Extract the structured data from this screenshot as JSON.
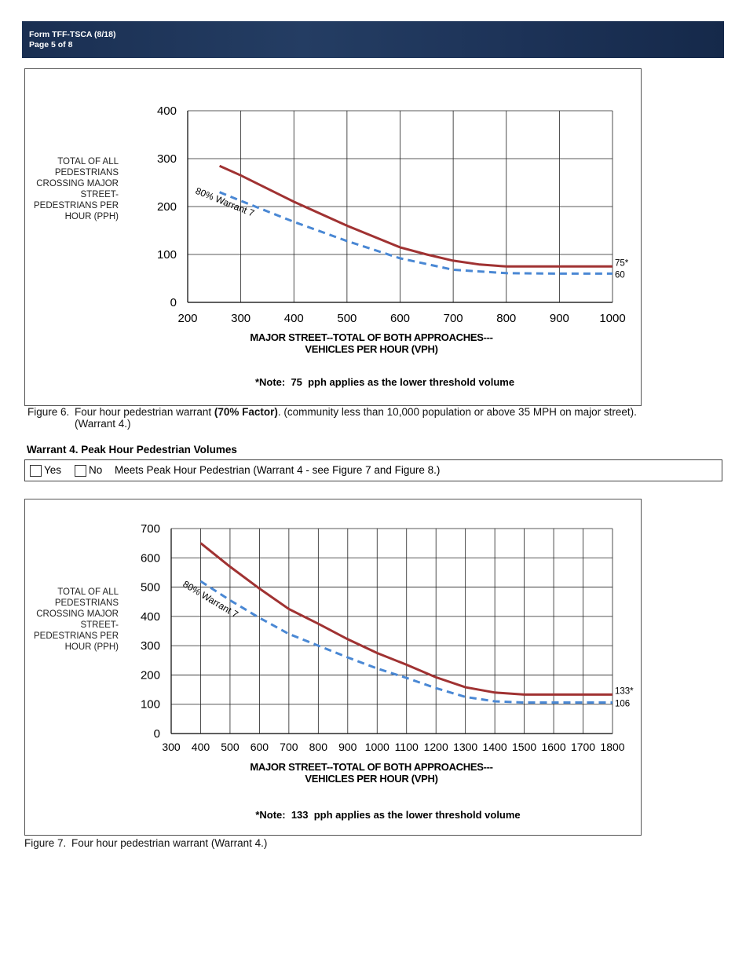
{
  "header": {
    "form": "Form TFF-TSCA  (8/18)",
    "page": "Page 5 of 8"
  },
  "chart_data": [
    {
      "type": "line",
      "ylabel": "TOTAL OF ALL PEDESTRIANS CROSSING MAJOR STREET-PEDESTRIANS PER HOUR (PPH)",
      "xlabel": [
        "MAJOR STREET--TOTAL OF BOTH APPROACHES---",
        "VEHICLES PER HOUR (VPH)"
      ],
      "note": "*Note:  75  pph applies as the lower threshold volume",
      "xlim": [
        200,
        1000
      ],
      "xticks": [
        200,
        300,
        400,
        500,
        600,
        700,
        800,
        900,
        1000
      ],
      "ylim": [
        0,
        400
      ],
      "yticks": [
        0,
        100,
        200,
        300,
        400
      ],
      "grid": true,
      "series": [
        {
          "color": "#a03232",
          "style": "solid",
          "end_label": "75*",
          "x": [
            260,
            300,
            400,
            500,
            600,
            650,
            700,
            750,
            800,
            900,
            1000
          ],
          "values": [
            285,
            265,
            210,
            160,
            115,
            100,
            87,
            79,
            75,
            75,
            75
          ]
        },
        {
          "name": "80% Warrant 7",
          "color": "#4a88d4",
          "style": "dashed",
          "end_label": "60",
          "x": [
            260,
            300,
            400,
            500,
            600,
            700,
            800,
            900,
            1000
          ],
          "values": [
            230,
            212,
            168,
            128,
            92,
            68,
            61,
            60,
            60
          ]
        }
      ]
    },
    {
      "type": "line",
      "ylabel": "TOTAL OF ALL PEDESTRIANS CROSSING MAJOR STREET-PEDESTRIANS PER HOUR (PPH)",
      "xlabel": [
        "MAJOR STREET--TOTAL OF BOTH APPROACHES---",
        "VEHICLES PER HOUR (VPH)"
      ],
      "note": "*Note:  133  pph applies as the lower threshold volume",
      "xlim": [
        300,
        1800
      ],
      "xticks": [
        300,
        400,
        500,
        600,
        700,
        800,
        900,
        1000,
        1100,
        1200,
        1300,
        1400,
        1500,
        1600,
        1700,
        1800
      ],
      "ylim": [
        0,
        700
      ],
      "yticks": [
        0,
        100,
        200,
        300,
        400,
        500,
        600,
        700
      ],
      "grid": true,
      "series": [
        {
          "color": "#a03232",
          "style": "solid",
          "end_label": "133*",
          "x": [
            400,
            500,
            600,
            700,
            800,
            900,
            1000,
            1100,
            1200,
            1300,
            1400,
            1500,
            1600,
            1700,
            1800
          ],
          "values": [
            650,
            570,
            495,
            425,
            375,
            322,
            275,
            235,
            192,
            158,
            140,
            133,
            133,
            133,
            133
          ]
        },
        {
          "name": "80% Warrant 7",
          "color": "#4a88d4",
          "style": "dashed",
          "end_label": "106",
          "x": [
            400,
            500,
            600,
            700,
            800,
            900,
            1000,
            1100,
            1200,
            1300,
            1400,
            1500,
            1800
          ],
          "values": [
            520,
            455,
            395,
            340,
            300,
            260,
            222,
            190,
            155,
            125,
            110,
            106,
            106
          ]
        }
      ]
    }
  ],
  "captions": [
    {
      "label": "Figure 6.",
      "text": "Four hour pedestrian warrant ",
      "bold": "(70% Factor)",
      "rest": ". (community less than 10,000 population or above 35 MPH on major street).",
      "line2": "(Warrant 4.)"
    },
    {
      "label": "Figure 7.",
      "text": "Four hour pedestrian warrant (Warrant 4.)"
    }
  ],
  "warrant": {
    "heading": "Warrant 4. Peak Hour Pedestrian Volumes",
    "yes": "Yes",
    "no": "No",
    "text": "Meets Peak Hour Pedestrian (Warrant 4 - see Figure 7 and Figure 8.)"
  }
}
